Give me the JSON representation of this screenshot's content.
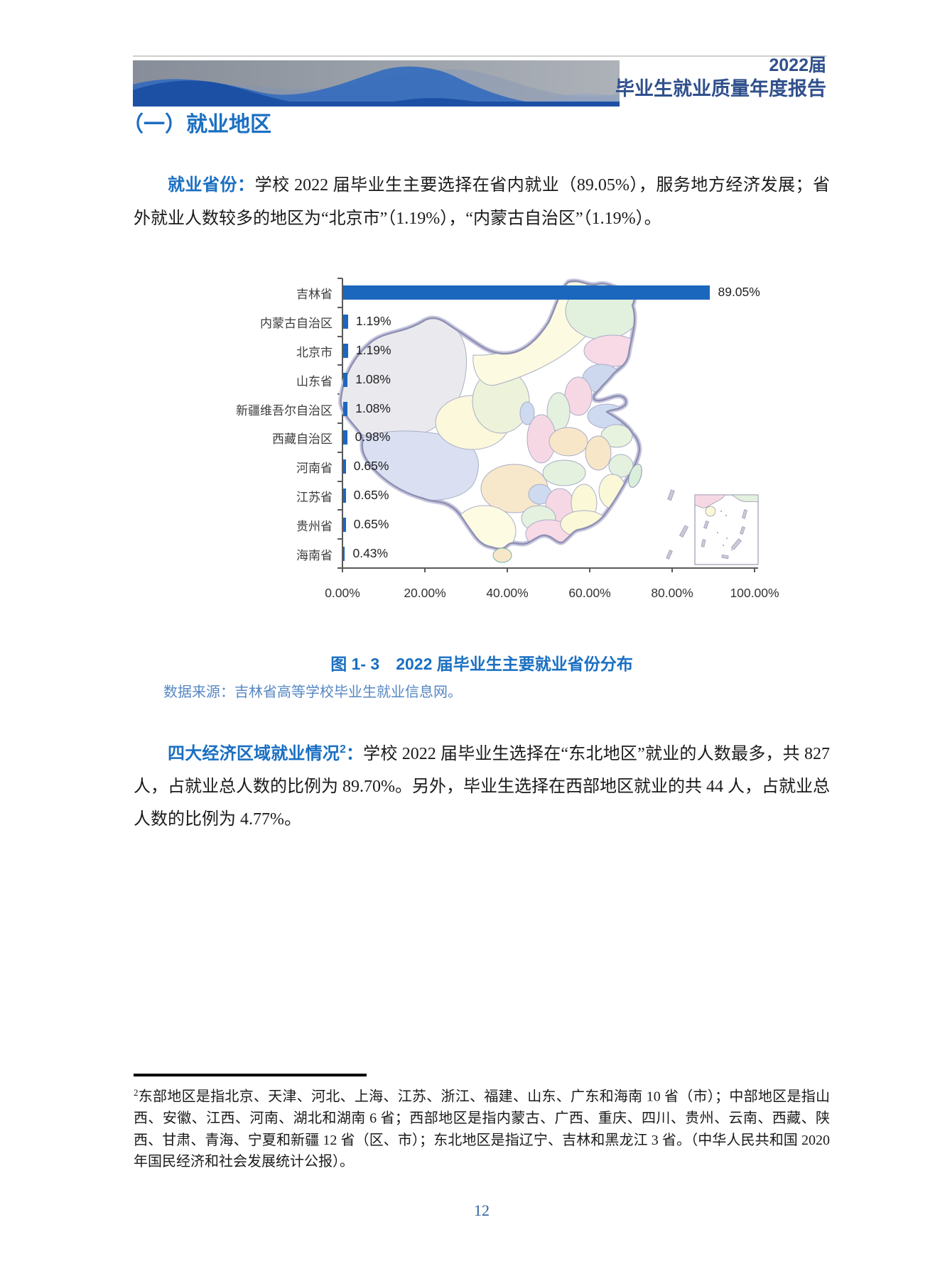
{
  "header": {
    "year_line": "2022届",
    "title_line": "毕业生就业质量年度报告"
  },
  "section": {
    "title": "（一）就业地区"
  },
  "para1": {
    "lead": "就业省份：",
    "body": "学校 2022 届毕业生主要选择在省内就业（89.05%），服务地方经济发展；省外就业人数较多的地区为“北京市”（1.19%），“内蒙古自治区”（1.19%）。"
  },
  "chart_data": {
    "type": "bar",
    "orientation": "horizontal",
    "title": "图 1- 3　2022 届毕业生主要就业省份分布",
    "categories": [
      "吉林省",
      "内蒙古自治区",
      "北京市",
      "山东省",
      "新疆维吾尔自治区",
      "西藏自治区",
      "河南省",
      "江苏省",
      "贵州省",
      "海南省"
    ],
    "values": [
      89.05,
      1.19,
      1.19,
      1.08,
      1.08,
      0.98,
      0.65,
      0.65,
      0.65,
      0.43
    ],
    "value_labels": [
      "89.05%",
      "1.19%",
      "1.19%",
      "1.08%",
      "1.08%",
      "0.98%",
      "0.65%",
      "0.65%",
      "0.65%",
      "0.43%"
    ],
    "x_ticks": [
      "0.00%",
      "20.00%",
      "40.00%",
      "60.00%",
      "80.00%",
      "100.00%"
    ],
    "xlim": [
      0,
      100
    ],
    "xlabel": "",
    "ylabel": "",
    "grid": false,
    "legend": "none",
    "bar_color": "#1b67be",
    "overlay": "map-of-china-with-south-china-sea-inset"
  },
  "source": "数据来源：吉林省高等学校毕业生就业信息网。",
  "para2": {
    "lead": "四大经济区域就业情况",
    "lead_sup": "2",
    "lead_colon": "：",
    "body": "学校 2022 届毕业生选择在“东北地区”就业的人数最多，共 827 人，占就业总人数的比例为 89.70%。另外，毕业生选择在西部地区就业的共 44 人，占就业总人数的比例为 4.77%。"
  },
  "footnote": {
    "sup": "2",
    "text": "东部地区是指北京、天津、河北、上海、江苏、浙江、福建、山东、广东和海南 10 省（市）；中部地区是指山西、安徽、江西、河南、湖北和湖南 6 省；西部地区是指内蒙古、广西、重庆、四川、贵州、云南、西藏、陕西、甘肃、青海、宁夏和新疆 12 省（区、市）；东北地区是指辽宁、吉林和黑龙江 3 省。（中华人民共和国 2020 年国民经济和社会发展统计公报）。"
  },
  "page": {
    "number": "12"
  },
  "colors": {
    "accent_blue": "#1a6fc2",
    "bar_blue": "#1b67be",
    "header_navy": "#30508c",
    "source_blue": "#5687c2",
    "banner_dark_blue": "#1c50a5",
    "map_border": "#8f90b4"
  }
}
